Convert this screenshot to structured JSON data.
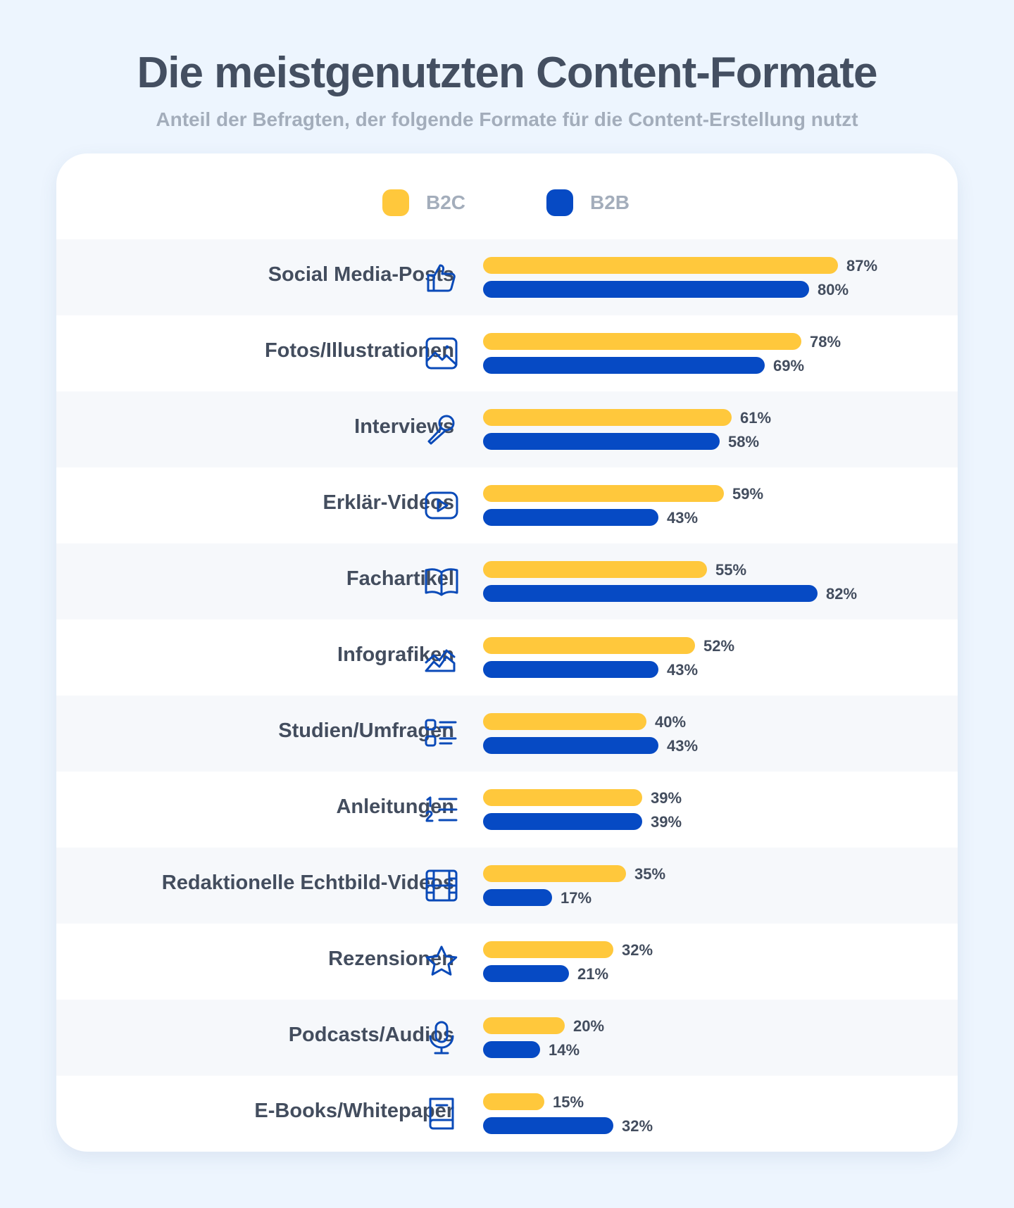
{
  "header": {
    "title": "Die meistgenutzten Content-Formate",
    "subtitle": "Anteil der Befragten, der folgende Formate für die Content-Erstellung nutzt"
  },
  "chart_data": {
    "type": "bar",
    "orientation": "horizontal",
    "title": "Die meistgenutzten Content-Formate",
    "subtitle": "Anteil der Befragten, der folgende Formate für die Content-Erstellung nutzt",
    "unit": "%",
    "xlim": [
      0,
      100
    ],
    "grid": false,
    "legend_position": "top-center",
    "categories": [
      "Social Media-Posts",
      "Fotos/Illustrationen",
      "Interviews",
      "Erklär-Videos",
      "Fachartikel",
      "Infografiken",
      "Studien/Umfragen",
      "Anleitungen",
      "Redaktionelle Echtbild-Videos",
      "Rezensionen",
      "Podcasts/Audios",
      "E-Books/Whitepaper"
    ],
    "icons": [
      "thumbs-up-icon",
      "image-icon",
      "microphone-icon",
      "video-play-icon",
      "open-book-icon",
      "area-chart-icon",
      "checklist-icon",
      "numbered-list-icon",
      "film-icon",
      "star-icon",
      "podcast-microphone-icon",
      "ebook-icon"
    ],
    "series": [
      {
        "name": "B2C",
        "color": "#ffc83c",
        "values": [
          87,
          78,
          61,
          59,
          55,
          52,
          40,
          39,
          35,
          32,
          20,
          15
        ]
      },
      {
        "name": "B2B",
        "color": "#064ac4",
        "values": [
          80,
          69,
          58,
          43,
          82,
          43,
          43,
          39,
          17,
          21,
          14,
          32
        ]
      }
    ],
    "value_labels": {
      "B2C": [
        "87%",
        "78%",
        "61%",
        "59%",
        "55%",
        "52%",
        "40%",
        "39%",
        "35%",
        "32%",
        "20%",
        "15%"
      ],
      "B2B": [
        "80%",
        "69%",
        "58%",
        "43%",
        "82%",
        "43%",
        "43%",
        "39%",
        "17%",
        "21%",
        "14%",
        "32%"
      ]
    }
  },
  "colors": {
    "page_background": "#edf5fe",
    "card_background": "#ffffff",
    "row_shade": "#f6f8fb",
    "b2c": "#ffc83c",
    "b2b": "#064ac4",
    "icon": "#0a4ab8",
    "text_dark": "#434d5e",
    "text_muted": "#a3adbb"
  }
}
